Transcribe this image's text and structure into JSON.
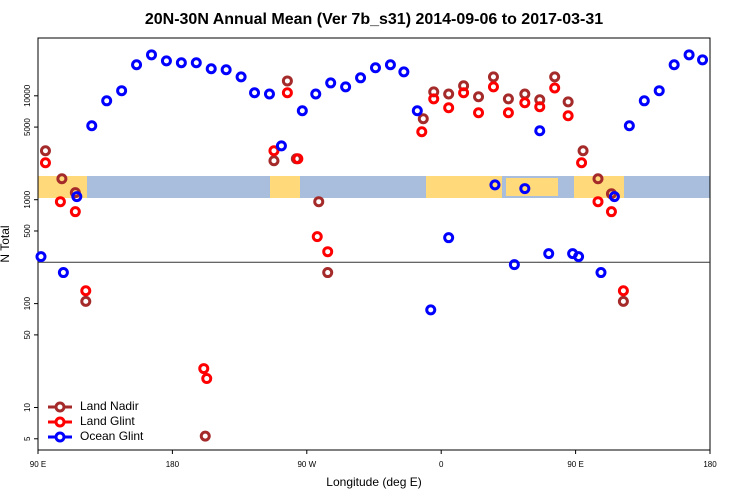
{
  "chart_data": {
    "type": "scatter",
    "title": "20N-30N Annual Mean (Ver 7b_s31)   2014-09-06 to 2017-03-31",
    "xlabel": "Longitude (deg E)",
    "ylabel": "N Total",
    "log_y": true,
    "legend": "lower left",
    "reference_line": 250,
    "xlim": [
      90,
      540
    ],
    "ylim": [
      3.9,
      36000
    ],
    "xticks": [
      {
        "value": 90,
        "label": "90 E"
      },
      {
        "value": 180,
        "label": "180"
      },
      {
        "value": 270,
        "label": "90 W"
      },
      {
        "value": 360,
        "label": "0"
      },
      {
        "value": 450,
        "label": "90 E"
      },
      {
        "value": 540,
        "label": "180"
      }
    ],
    "yticks": [
      5,
      10,
      50,
      100,
      500,
      1000,
      5000,
      10000
    ],
    "series": [
      {
        "name": "Land Nadir",
        "color": "#a52a2a",
        "x": [
          95,
          106,
          115,
          122,
          248,
          257,
          263,
          278,
          284,
          348,
          355,
          365,
          375,
          385,
          395,
          405,
          416,
          426,
          436,
          445,
          455,
          465,
          474,
          482,
          202
        ],
        "values": [
          2960,
          1590,
          1170,
          105,
          2370,
          13900,
          2480,
          957,
          199,
          6010,
          10900,
          10400,
          12500,
          9800,
          15200,
          9350,
          10400,
          9150,
          15200,
          8750,
          2960,
          1590,
          1140,
          105,
          5.3
        ]
      },
      {
        "name": "Land Glint",
        "color": "#ff0000",
        "x": [
          95,
          105,
          115,
          122,
          248,
          257,
          264,
          277,
          284,
          347,
          355,
          365,
          375,
          385,
          395,
          405,
          416,
          426,
          436,
          445,
          454,
          465,
          474,
          482,
          201,
          203
        ],
        "values": [
          2270,
          957,
          767,
          133,
          2960,
          10700,
          2480,
          441,
          316,
          4510,
          9350,
          7670,
          10700,
          6870,
          12200,
          6870,
          8570,
          7840,
          11900,
          6430,
          2270,
          957,
          767,
          133,
          23.7,
          19.0
        ]
      },
      {
        "name": "Ocean Glint",
        "color": "#0000ff",
        "x": [
          92,
          107,
          116,
          126,
          136,
          146,
          156,
          166,
          176,
          186,
          196,
          206,
          216,
          226,
          235,
          245,
          253,
          267,
          276,
          286,
          296,
          306,
          316,
          326,
          335,
          344,
          353,
          365,
          396,
          409,
          416,
          426,
          432,
          448,
          452,
          467,
          476,
          486,
          496,
          506,
          516,
          526,
          535
        ],
        "values": [
          283,
          199,
          1070,
          5150,
          8950,
          11200,
          19900,
          24800,
          21700,
          20800,
          20800,
          18200,
          17800,
          15200,
          10700,
          10400,
          3300,
          7180,
          10400,
          13300,
          12200,
          14900,
          18600,
          19900,
          17000,
          7180,
          87,
          431,
          1390,
          237,
          1280,
          4610,
          303,
          303,
          283,
          199,
          1070,
          5150,
          8950,
          11200,
          19900,
          24800,
          22200
        ]
      }
    ]
  }
}
